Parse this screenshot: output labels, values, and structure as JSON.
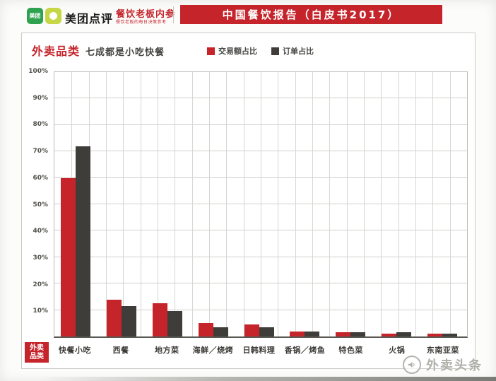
{
  "header": {
    "brand": "美团点评",
    "meituan_icon_text": "美团",
    "sub_brand": "餐饮老板内参",
    "sub_brand_tagline": "餐饮老板的每日决策参考",
    "banner_title": "中国餐饮报告（白皮书2017）"
  },
  "chart": {
    "title_highlight": "外卖品类",
    "title_rest": "七成都是小吃快餐",
    "axis_box_line1": "外卖",
    "axis_box_line2": "品类"
  },
  "watermark": {
    "text": "外卖头条"
  },
  "colors": {
    "accent_red": "#c5242b",
    "bar_dark": "#3f3d39",
    "grid": "#d2d2ce"
  },
  "chart_data": {
    "type": "bar",
    "title": "外卖品类 七成都是小吃快餐",
    "categories": [
      "快餐小吃",
      "西餐",
      "地方菜",
      "海鲜／烧烤",
      "日韩料理",
      "香锅／烤鱼",
      "特色菜",
      "火锅",
      "东南亚菜"
    ],
    "series": [
      {
        "name": "交易额占比",
        "color": "#c5242b",
        "values": [
          60,
          14,
          12.5,
          5,
          4.5,
          2,
          1.5,
          1,
          1
        ]
      },
      {
        "name": "订单占比",
        "color": "#3f3d39",
        "values": [
          72,
          11.5,
          9.5,
          3.5,
          3.5,
          2,
          1.5,
          1.5,
          1
        ]
      }
    ],
    "xlabel": "外卖品类",
    "ylabel": "",
    "ylim": [
      0,
      100
    ],
    "yticks": [
      "100%",
      "90%",
      "80%",
      "70%",
      "60%",
      "50%",
      "40%",
      "30%",
      "20%",
      "10%"
    ],
    "grid": true,
    "legend_position": "top-center"
  }
}
